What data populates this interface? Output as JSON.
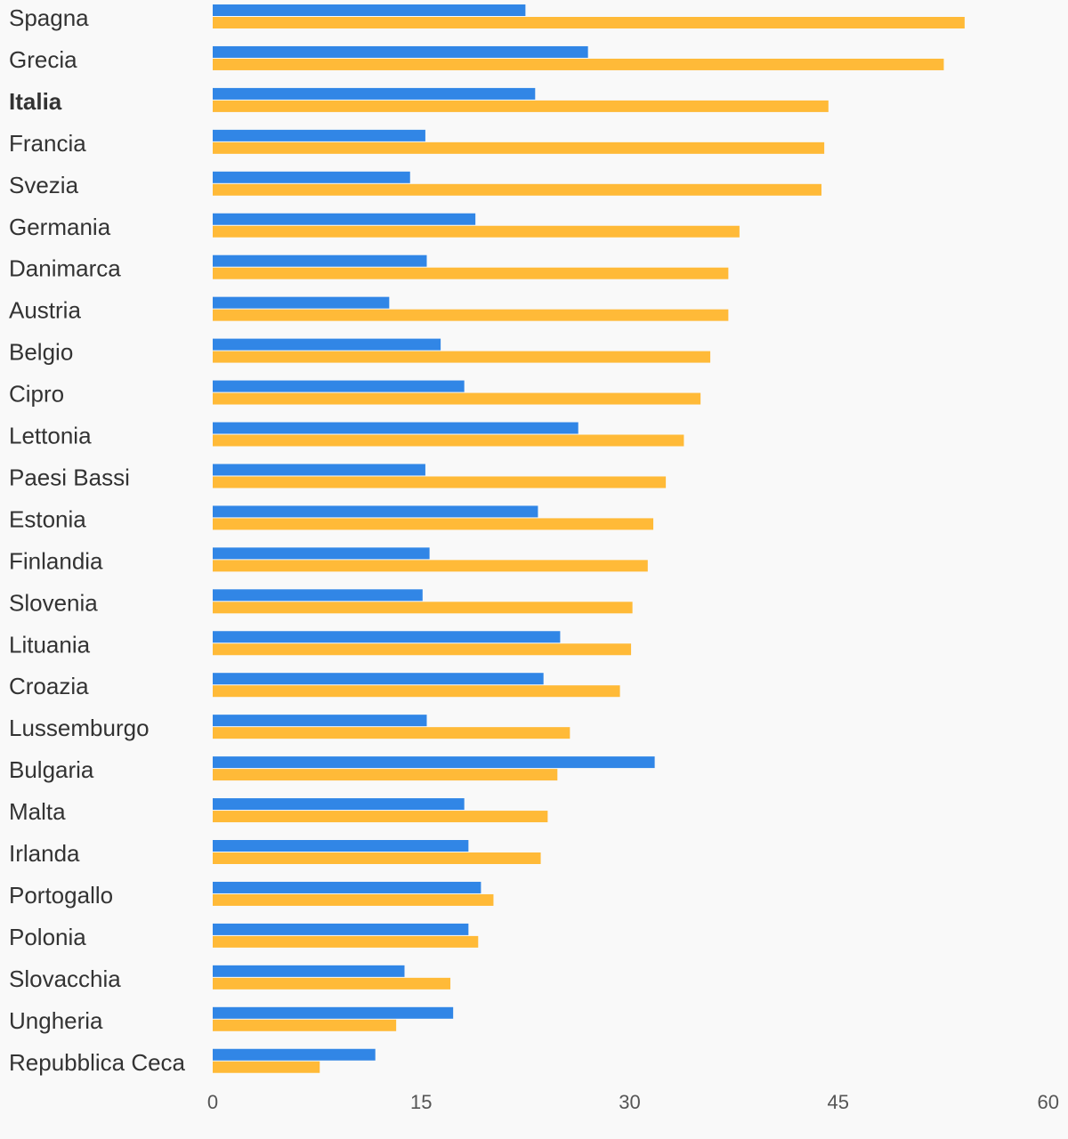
{
  "chart_data": {
    "type": "bar",
    "orientation": "horizontal",
    "categories": [
      "Spagna",
      "Grecia",
      "Italia",
      "Francia",
      "Svezia",
      "Germania",
      "Danimarca",
      "Austria",
      "Belgio",
      "Cipro",
      "Lettonia",
      "Paesi Bassi",
      "Estonia",
      "Finlandia",
      "Slovenia",
      "Lituania",
      "Croazia",
      "Lussemburgo",
      "Bulgaria",
      "Malta",
      "Irlanda",
      "Portogallo",
      "Polonia",
      "Slovacchia",
      "Ungheria",
      "Repubblica Ceca"
    ],
    "highlight": "Italia",
    "series": [
      {
        "color": "#3186e6",
        "values": [
          22.5,
          27.0,
          23.2,
          15.3,
          14.2,
          18.9,
          15.4,
          12.7,
          16.4,
          18.1,
          26.3,
          15.3,
          23.4,
          15.6,
          15.1,
          25.0,
          23.8,
          15.4,
          31.8,
          18.1,
          18.4,
          19.3,
          18.4,
          13.8,
          17.3,
          11.7
        ]
      },
      {
        "color": "#ffba38",
        "values": [
          54.1,
          52.6,
          44.3,
          44.0,
          43.8,
          37.9,
          37.1,
          37.1,
          35.8,
          35.1,
          33.9,
          32.6,
          31.7,
          31.3,
          30.2,
          30.1,
          29.3,
          25.7,
          24.8,
          24.1,
          23.6,
          20.2,
          19.1,
          17.1,
          13.2,
          7.7
        ]
      }
    ],
    "xlim": [
      0,
      60
    ],
    "xticks": [
      0,
      15,
      30,
      45,
      60
    ],
    "title": "",
    "xlabel": "",
    "ylabel": "",
    "grid": false,
    "legend": "none"
  }
}
